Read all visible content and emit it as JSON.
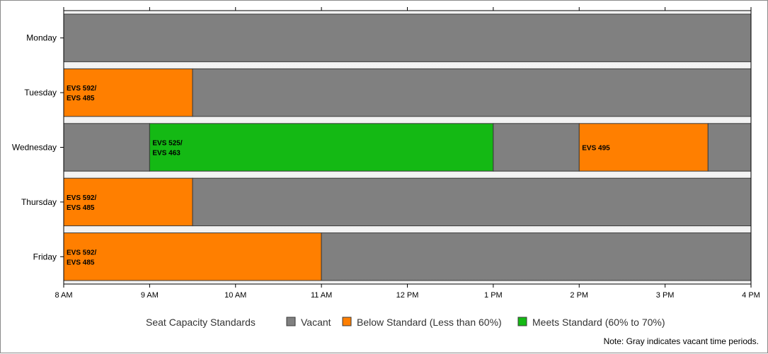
{
  "chart_data": {
    "type": "gantt",
    "x_ticks": [
      "8 AM",
      "9 AM",
      "10 AM",
      "11 AM",
      "12 PM",
      "1 PM",
      "2 PM",
      "3 PM",
      "4 PM"
    ],
    "xlim": [
      8,
      16
    ],
    "categories": [
      "Monday",
      "Tuesday",
      "Wednesday",
      "Thursday",
      "Friday"
    ],
    "segments": [
      [
        {
          "start": 8,
          "end": 16,
          "status": "vacant",
          "label": ""
        }
      ],
      [
        {
          "start": 8,
          "end": 9.5,
          "status": "below",
          "label": "EVS 592/\nEVS 485"
        },
        {
          "start": 9.5,
          "end": 16,
          "status": "vacant",
          "label": ""
        }
      ],
      [
        {
          "start": 8,
          "end": 9,
          "status": "vacant",
          "label": ""
        },
        {
          "start": 9,
          "end": 13,
          "status": "meets",
          "label": "EVS 525/\nEVS 463"
        },
        {
          "start": 13,
          "end": 14,
          "status": "vacant",
          "label": ""
        },
        {
          "start": 14,
          "end": 15.5,
          "status": "below",
          "label": "EVS 495"
        },
        {
          "start": 15.5,
          "end": 16,
          "status": "vacant",
          "label": ""
        }
      ],
      [
        {
          "start": 8,
          "end": 9.5,
          "status": "below",
          "label": "EVS 592/\nEVS 485"
        },
        {
          "start": 9.5,
          "end": 16,
          "status": "vacant",
          "label": ""
        }
      ],
      [
        {
          "start": 8,
          "end": 11,
          "status": "below",
          "label": "EVS 592/\nEVS 485"
        },
        {
          "start": 11,
          "end": 16,
          "status": "vacant",
          "label": ""
        }
      ]
    ],
    "colors": {
      "vacant": "#808080",
      "below": "#ff7f00",
      "meets": "#14b914"
    },
    "legend": {
      "title": "Seat Capacity Standards",
      "items": [
        {
          "key": "vacant",
          "label": "Vacant"
        },
        {
          "key": "below",
          "label": "Below Standard (Less than 60%)"
        },
        {
          "key": "meets",
          "label": "Meets Standard (60% to 70%)"
        }
      ],
      "placement": "bottom"
    },
    "note": "Note: Gray indicates vacant time periods."
  }
}
